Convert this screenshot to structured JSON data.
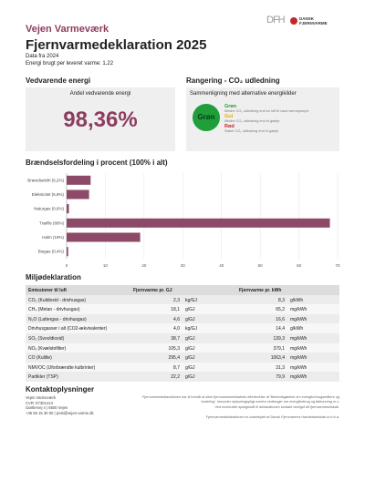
{
  "logos": {
    "dfh": "DFH",
    "dansk": "DANSK",
    "fjernvarme": "FJERNVARME"
  },
  "header": {
    "company": "Vejen Varmeværk",
    "title": "Fjernvarmedeklaration 2025",
    "data_year": "Data fra 2024",
    "energy": "Energi brugt per leveret varme: 1,22"
  },
  "renewable": {
    "heading": "Vedvarende energi",
    "box_title": "Andel vedvarende energi",
    "value": "98,36%"
  },
  "ranking": {
    "heading": "Rangering - CO₂ udledning",
    "box_title": "Sammenligning med alternative energikilder",
    "rating": "Grøn",
    "legend": [
      {
        "name": "Grøn",
        "text": "Mindre CO₂ udledning end en luft til vand varmepumpe",
        "color": "#1f9e3a"
      },
      {
        "name": "Gul",
        "text": "Mindre CO₂ udledning end et gasfyr",
        "color": "#e0b000"
      },
      {
        "name": "Rød",
        "text": "Større CO₂ udledning end et gasfyr",
        "color": "#c0282d"
      }
    ]
  },
  "chart_data": {
    "type": "hbar",
    "title": "Brændselsfordeling i procent (100% i alt)",
    "categories": [
      "Brændselsfri (6,2%)",
      "Elektricitet (5,8%)",
      "Naturgas (0,6%)",
      "Træflis (68%)",
      "Halm (19%)",
      "Biogas (0,4%)"
    ],
    "values": [
      6.2,
      5.8,
      0.6,
      68,
      19,
      0.4
    ],
    "color": "#8c4a68",
    "xlim": [
      0,
      70
    ],
    "xticks": [
      0,
      10,
      20,
      30,
      40,
      50,
      60,
      70
    ],
    "grid": true
  },
  "emissions": {
    "heading": "Miljødeklaration",
    "columns": [
      "Emissioner til luft",
      "Fjernvarme pr. GJ",
      "Fjernvarme pr. kWh"
    ],
    "rows": [
      [
        "CO₂ (Kuldioxid - drivhusgas)",
        "2,3",
        "kg/GJ",
        "8,3",
        "g/kWh"
      ],
      [
        "CH₄ (Metan - drivhusgas)",
        "18,1",
        "g/GJ",
        "65,2",
        "mg/kWh"
      ],
      [
        "N₂O (Lattergas - drivhusgas)",
        "4,6",
        "g/GJ",
        "16,6",
        "mg/kWh"
      ],
      [
        "Drivhusgasser i alt (CO2-ækvivalenter)",
        "4,0",
        "kg/GJ",
        "14,4",
        "g/kWh"
      ],
      [
        "SO₂ (Svovldioxid)",
        "38,7",
        "g/GJ",
        "139,3",
        "mg/kWh"
      ],
      [
        "NOₓ (Kvælstofilter)",
        "105,3",
        "g/GJ",
        "379,1",
        "mg/kWh"
      ],
      [
        "CO (Kulilte)",
        "295,4",
        "g/GJ",
        "1063,4",
        "mg/kWh"
      ],
      [
        "NMVOC (Uforbrændte kulbrinter)",
        "8,7",
        "g/GJ",
        "31,3",
        "mg/kWh"
      ],
      [
        "Partikler (TSP)",
        "22,2",
        "g/GJ",
        "79,9",
        "mg/kWh"
      ]
    ]
  },
  "contact": {
    "heading": "Kontaktoplysninger",
    "lines": [
      "Vejen Varmeværk",
      "CVR: 57301414",
      "Gørtlervej 4 | 6600 Vejen",
      "+45 55 15 30 00 | post@vejen-varme.dk"
    ],
    "note": [
      "Fjernvarmedeklarationen har til formål at sikre fjernvarmeselskabets efterlevelse af 'Bekendtgørelse om energiforbrugsmålere og fordeling', herunder oplysningspligt overfor slutbruger om energiforbrug og fakturering m.v.",
      "Ved eventuelle spørgsmål til deklarationen kontakt venligst dit fjernvarmeselskab.",
      "Fjernvarmedeklarationen er udarbejdet af Dansk Fjernvarmes Handelsselskab a.m.b.a."
    ]
  }
}
